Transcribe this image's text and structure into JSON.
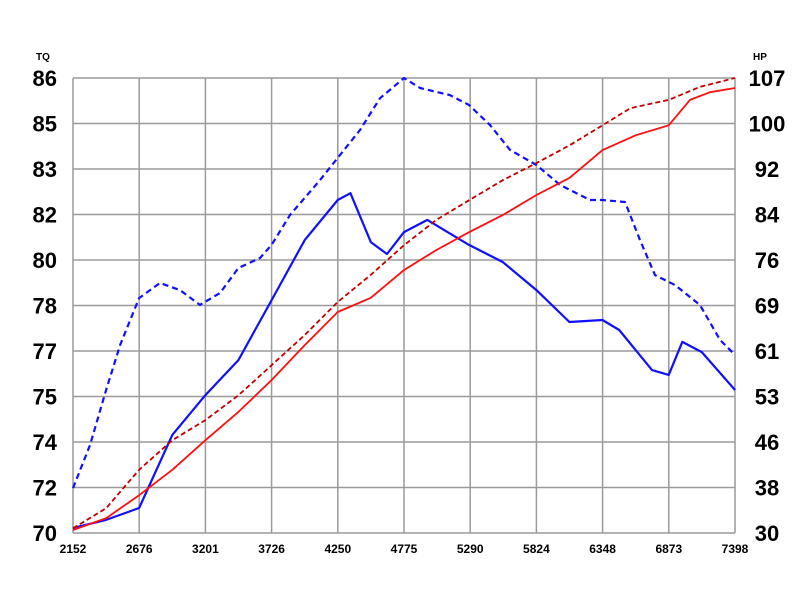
{
  "chart_data": {
    "type": "line",
    "title": "",
    "xlabel": "",
    "ylabel_left": "TQ",
    "ylabel_right": "HP",
    "xlim": [
      2152,
      7398
    ],
    "ylim_left": [
      70,
      86
    ],
    "ylim_right": [
      30,
      107
    ],
    "grid": true,
    "x_ticks": [
      "2152",
      "2676",
      "3201",
      "3726",
      "4250",
      "4775",
      "5290",
      "5824",
      "6348",
      "6873",
      "7398"
    ],
    "y_ticks_left": [
      "70",
      "72",
      "74",
      "75",
      "77",
      "78",
      "80",
      "82",
      "83",
      "85",
      "86"
    ],
    "y_ticks_right": [
      "30",
      "38",
      "46",
      "53",
      "61",
      "69",
      "76",
      "84",
      "92",
      "100",
      "107"
    ],
    "colors": {
      "blue": "#1010ff",
      "red": "#ff1010",
      "dark_red": "#c00000",
      "grid": "#9a9a9a"
    },
    "series": [
      {
        "axis": "left",
        "color": "#1010ff",
        "style": "solid",
        "x": [
          2152,
          2414,
          2676,
          2939,
          3201,
          3463,
          3726,
          3988,
          4250,
          4350,
          4512,
          4640,
          4775,
          4960,
          5290,
          5557,
          5824,
          6086,
          6348,
          6480,
          6740,
          6873,
          6980,
          7135,
          7398
        ],
        "y": [
          70.18,
          70.46,
          70.88,
          73.45,
          74.85,
          76.08,
          78.19,
          80.3,
          81.71,
          81.95,
          80.23,
          79.81,
          80.58,
          81.01,
          80.13,
          79.53,
          78.54,
          77.42,
          77.49,
          77.14,
          75.73,
          75.56,
          76.72,
          76.36,
          75.03
        ]
      },
      {
        "axis": "left",
        "color": "#1010ff",
        "style": "dashed",
        "x": [
          2152,
          2287,
          2414,
          2525,
          2676,
          2841,
          3000,
          3158,
          3317,
          3463,
          3634,
          3726,
          3871,
          4109,
          4250,
          4426,
          4585,
          4775,
          4902,
          5139,
          5290,
          5456,
          5615,
          5824,
          6011,
          6249,
          6348,
          6526,
          6645,
          6764,
          6922,
          7120,
          7279,
          7398
        ],
        "y": [
          71.58,
          73.09,
          75.03,
          76.61,
          78.26,
          78.79,
          78.54,
          78.02,
          78.44,
          79.32,
          79.67,
          80.13,
          81.18,
          82.41,
          83.19,
          84.17,
          85.29,
          86.0,
          85.65,
          85.4,
          85.05,
          84.35,
          83.47,
          82.94,
          82.24,
          81.71,
          81.71,
          81.64,
          80.3,
          79.07,
          78.72,
          78.02,
          76.79,
          76.26
        ]
      },
      {
        "axis": "right",
        "color": "#ff1010",
        "style": "solid",
        "x": [
          2152,
          2414,
          2676,
          2939,
          3201,
          3463,
          3726,
          3988,
          4250,
          4512,
          4775,
          5032,
          5290,
          5557,
          5824,
          6086,
          6348,
          6610,
          6873,
          7041,
          7200,
          7398
        ],
        "y": [
          30.5,
          32.5,
          36.4,
          40.7,
          45.7,
          50.5,
          55.9,
          61.8,
          67.4,
          69.8,
          74.5,
          77.9,
          80.9,
          83.8,
          87.2,
          90.1,
          94.8,
          97.3,
          99.0,
          103.3,
          104.6,
          105.3
        ]
      },
      {
        "axis": "right",
        "color": "#c00000",
        "style": "dashed",
        "x": [
          2152,
          2414,
          2676,
          2939,
          3201,
          3463,
          3726,
          3988,
          4250,
          4512,
          4775,
          5032,
          5290,
          5557,
          5824,
          6086,
          6348,
          6570,
          6873,
          7120,
          7398
        ],
        "y": [
          30.8,
          34.2,
          40.7,
          45.7,
          49.1,
          53.3,
          58.4,
          63.5,
          69.1,
          73.7,
          78.7,
          83.0,
          86.3,
          89.7,
          92.6,
          95.6,
          99.0,
          101.9,
          103.3,
          105.5,
          107.0
        ]
      }
    ]
  }
}
